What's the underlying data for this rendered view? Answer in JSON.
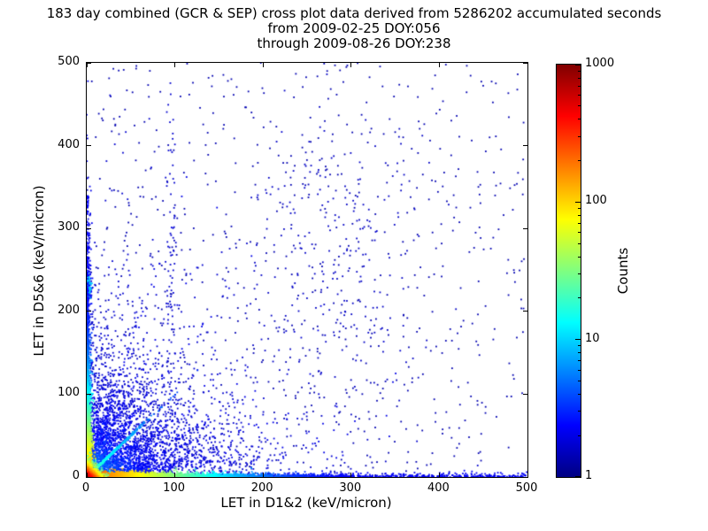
{
  "chart_data": {
    "type": "scatter",
    "title_lines": [
      "183 day combined (GCR & SEP) cross plot data derived from 5286202 accumulated seconds",
      "from 2009-02-25 DOY:056",
      "through 2009-08-26 DOY:238"
    ],
    "xlabel": "LET in D1&2 (keV/micron)",
    "ylabel": "LET in D5&6 (keV/micron)",
    "xlim": [
      0,
      500
    ],
    "ylim": [
      0,
      500
    ],
    "x_ticks": [
      "0",
      "100",
      "200",
      "300",
      "400",
      "500"
    ],
    "y_ticks": [
      "0",
      "100",
      "200",
      "300",
      "400",
      "500"
    ],
    "grid": false,
    "background_color": "#ffffff",
    "colorbar": {
      "label": "Counts",
      "scale": "log",
      "range": [
        1,
        1000
      ],
      "ticks": [
        "1",
        "10",
        "100",
        "1000"
      ],
      "colormap": "jet",
      "gradient_stops": [
        [
          "#800000",
          0
        ],
        [
          "#ff0000",
          12.5
        ],
        [
          "#ffff00",
          37.5
        ],
        [
          "#00ffff",
          62.5
        ],
        [
          "#0000ff",
          87.5
        ],
        [
          "#000082",
          100
        ]
      ]
    },
    "distribution": {
      "seed": 20090225,
      "point_size": 1.8,
      "specs": [
        {
          "name": "sparse-field",
          "type": "uniform",
          "n": 750,
          "c_base": 1.4
        },
        {
          "name": "mid-cluster",
          "type": "gauss",
          "n": 260,
          "x0": 285,
          "y0": 260,
          "x_sigma": 55,
          "y_sigma": 95,
          "c_base": 1.6
        },
        {
          "name": "vertical-streak",
          "type": "gauss",
          "n": 90,
          "x0": 96,
          "y0": 250,
          "x_sigma": 3,
          "y_sigma": 130,
          "c_base": 1.7
        },
        {
          "name": "lower-left-cloud",
          "type": "exp2d",
          "n": 3200,
          "x_mean": 55,
          "y_mean": 55,
          "c_base": 1.7,
          "c_amp": 4,
          "c_scale": 35
        },
        {
          "name": "fan-ray-1",
          "type": "ray",
          "n": 170,
          "slope": 0.12,
          "r_mean": 80,
          "r_max": 420,
          "jitter": 2.0,
          "c_base": 2,
          "c_amp": 6,
          "c_scale": 30
        },
        {
          "name": "fan-ray-2",
          "type": "ray",
          "n": 160,
          "slope": 0.2,
          "r_mean": 75,
          "r_max": 400,
          "jitter": 2.2,
          "c_base": 2,
          "c_amp": 6,
          "c_scale": 30
        },
        {
          "name": "fan-ray-3",
          "type": "ray",
          "n": 150,
          "slope": 0.32,
          "r_mean": 70,
          "r_max": 380,
          "jitter": 2.4,
          "c_base": 2,
          "c_amp": 6,
          "c_scale": 30
        },
        {
          "name": "fan-ray-4",
          "type": "ray",
          "n": 150,
          "slope": 0.5,
          "r_mean": 65,
          "r_max": 360,
          "jitter": 2.6,
          "c_base": 2,
          "c_amp": 6,
          "c_scale": 30
        },
        {
          "name": "fan-ray-5",
          "type": "ray",
          "n": 140,
          "slope": 0.72,
          "r_mean": 60,
          "r_max": 340,
          "jitter": 2.8,
          "c_base": 2,
          "c_amp": 6,
          "c_scale": 30
        },
        {
          "name": "fan-ray-6",
          "type": "ray",
          "n": 140,
          "slope": 1.4,
          "r_mean": 60,
          "r_max": 340,
          "jitter": 2.8,
          "c_base": 2,
          "c_amp": 6,
          "c_scale": 30
        },
        {
          "name": "fan-ray-7",
          "type": "ray",
          "n": 130,
          "slope": 2.1,
          "r_mean": 65,
          "r_max": 360,
          "jitter": 2.6,
          "c_base": 2,
          "c_amp": 6,
          "c_scale": 30
        },
        {
          "name": "fan-ray-8",
          "type": "ray",
          "n": 130,
          "slope": 3.2,
          "r_mean": 70,
          "r_max": 380,
          "jitter": 2.2,
          "c_base": 2,
          "c_amp": 6,
          "c_scale": 30
        },
        {
          "name": "x-axis-far-band",
          "type": "band_x_uniform",
          "n": 650,
          "y_mean": 1.5,
          "c_base": 2.2
        },
        {
          "name": "y-axis-far-band",
          "type": "band_y_uniform",
          "n": 300,
          "x_mean": 1.5,
          "y_max": 340,
          "c_base": 2.2
        },
        {
          "name": "left-edge-blob",
          "type": "gauss",
          "n": 70,
          "x0": 2,
          "y0": 232,
          "x_sigma": 1.5,
          "y_sigma": 7,
          "c_base": 9
        },
        {
          "name": "diagonal-streak",
          "type": "ray",
          "n": 750,
          "slope": 1.0,
          "r_mean": 26,
          "r_max": 330,
          "jitter": 0.9,
          "c_base": 3,
          "c_amp": 22,
          "c_scale": 45
        },
        {
          "name": "y-axis-band",
          "type": "band_y",
          "n": 3600,
          "x_mean": 1.3,
          "y_mean": 55,
          "c_base": 2,
          "c_amp": 160,
          "c_scale": 38
        },
        {
          "name": "x-axis-band",
          "type": "band_x",
          "n": 5200,
          "x_mean": 70,
          "y_mean": 1.3,
          "c_base": 2,
          "c_amp": 280,
          "c_scale": 45
        },
        {
          "name": "origin-core",
          "type": "exp2d",
          "n": 2600,
          "x_mean": 3.5,
          "y_mean": 3.5,
          "c_base": 6,
          "c_amp": 950,
          "c_scale": 7
        }
      ]
    }
  }
}
